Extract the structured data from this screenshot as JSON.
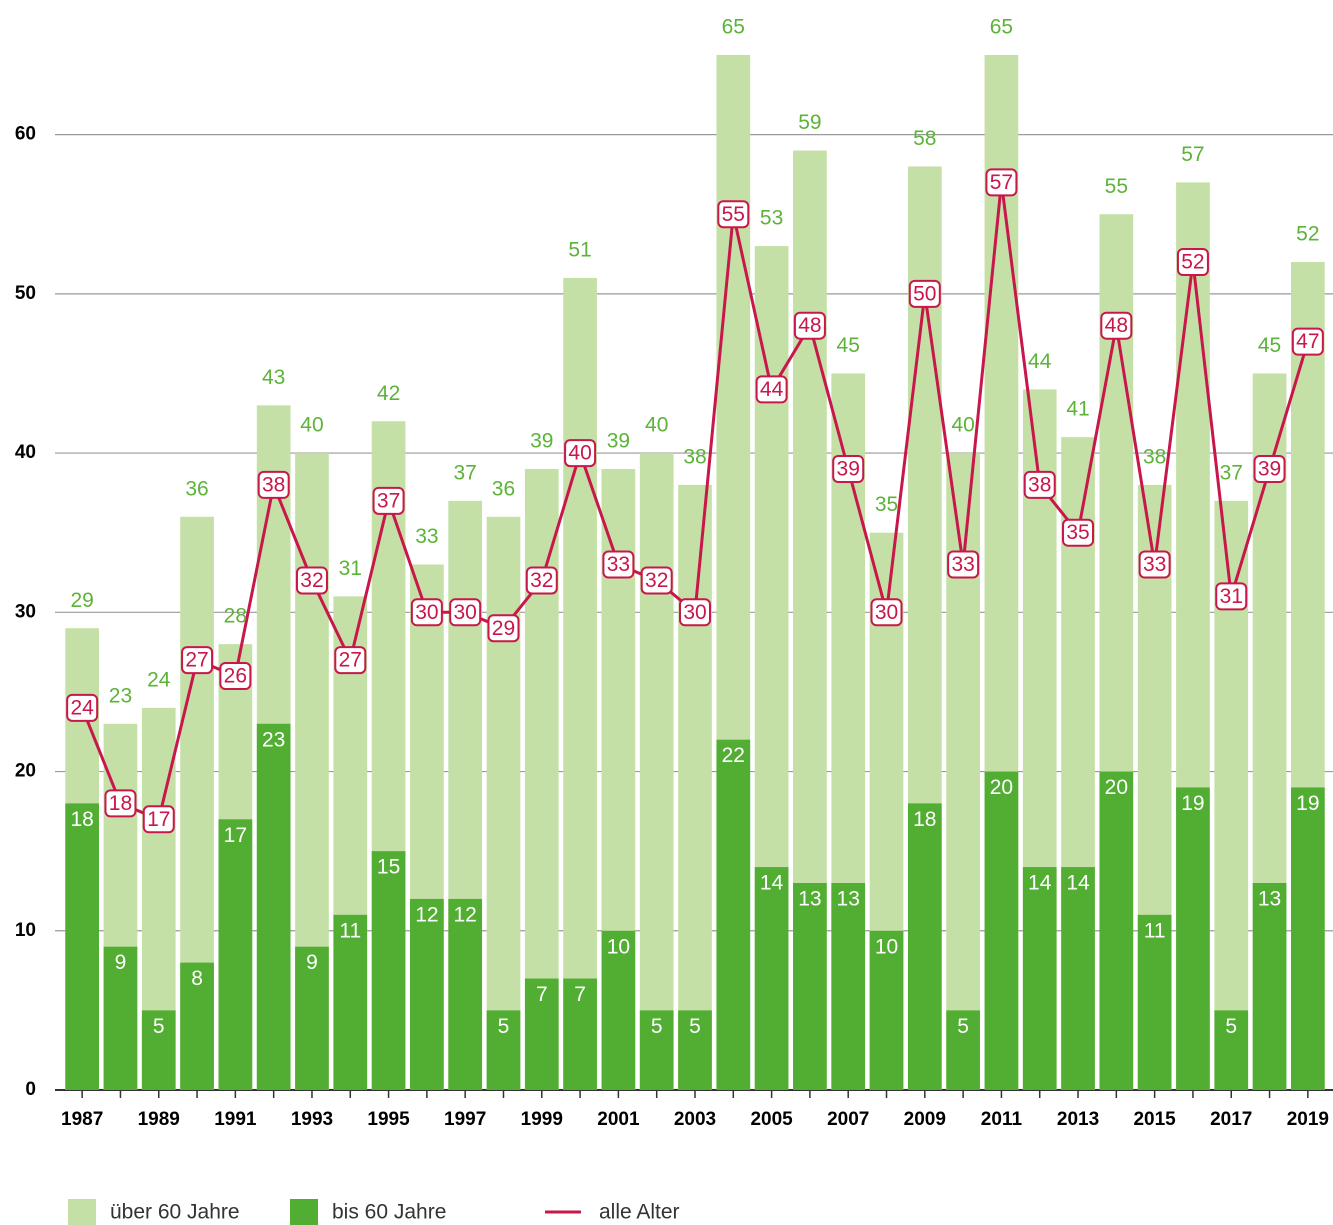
{
  "chart_data": {
    "type": "bar",
    "categories": [
      "1987",
      null,
      "1989",
      null,
      "1991",
      null,
      "1993",
      null,
      "1995",
      null,
      "1997",
      null,
      "1999",
      null,
      "2001",
      null,
      "2003",
      null,
      "2005",
      null,
      "2007",
      null,
      "2009",
      null,
      "2011",
      null,
      "2013",
      null,
      "2015",
      null,
      "2017",
      null,
      "2019"
    ],
    "series": [
      {
        "name": "über 60 Jahre",
        "type": "bar",
        "color": "#c5e0a6",
        "label_color": "#5cb338",
        "values": [
          29,
          23,
          24,
          36,
          28,
          43,
          40,
          31,
          42,
          33,
          37,
          36,
          39,
          51,
          39,
          40,
          38,
          65,
          53,
          59,
          45,
          35,
          58,
          40,
          65,
          44,
          41,
          55,
          38,
          57,
          37,
          45,
          52
        ]
      },
      {
        "name": "bis 60 Jahre",
        "type": "bar",
        "color": "#52ae32",
        "label_color": "#ffffff",
        "values": [
          18,
          9,
          5,
          8,
          17,
          23,
          9,
          11,
          15,
          12,
          12,
          5,
          7,
          7,
          10,
          5,
          5,
          22,
          14,
          13,
          13,
          10,
          18,
          5,
          20,
          14,
          14,
          20,
          11,
          19,
          5,
          13,
          19
        ]
      },
      {
        "name": "alle Alter",
        "type": "line",
        "color": "#c8174a",
        "label_color": "#c8174a",
        "values": [
          24,
          18,
          17,
          27,
          26,
          38,
          32,
          27,
          37,
          30,
          30,
          29,
          32,
          40,
          33,
          32,
          30,
          55,
          44,
          48,
          39,
          30,
          50,
          33,
          57,
          38,
          35,
          48,
          33,
          52,
          31,
          39,
          47
        ]
      }
    ],
    "ylim": [
      0,
      65
    ],
    "yticks": [
      0,
      10,
      20,
      30,
      40,
      50,
      60
    ],
    "grid": true,
    "legend": "bottom"
  }
}
